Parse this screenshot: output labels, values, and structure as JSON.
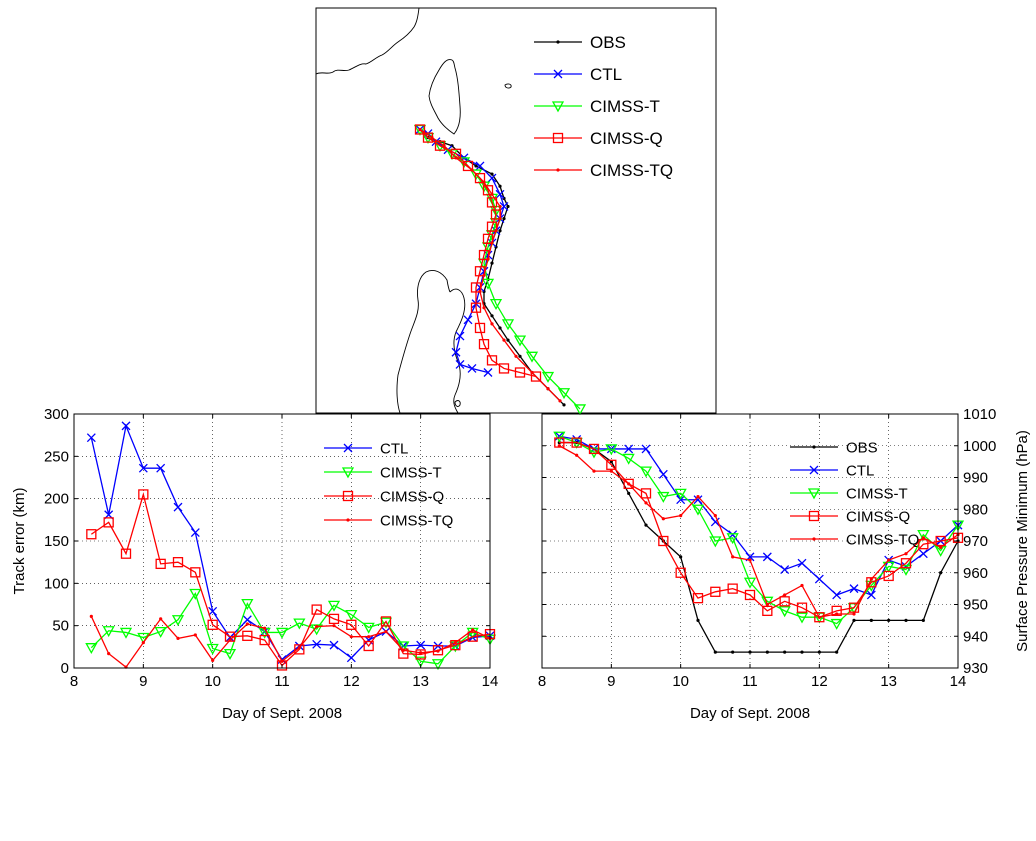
{
  "chart_data": [
    {
      "type": "line",
      "panel": "track-map",
      "legend_position": "top-right",
      "series": [
        {
          "name": "OBS",
          "color": "#000000",
          "marker": "dot",
          "points": [
            [
              0.26,
              0.3
            ],
            [
              0.28,
              0.32
            ],
            [
              0.31,
              0.33
            ],
            [
              0.34,
              0.34
            ],
            [
              0.37,
              0.37
            ],
            [
              0.4,
              0.39
            ],
            [
              0.44,
              0.41
            ],
            [
              0.46,
              0.44
            ],
            [
              0.47,
              0.47
            ],
            [
              0.48,
              0.49
            ],
            [
              0.47,
              0.52
            ],
            [
              0.46,
              0.55
            ],
            [
              0.45,
              0.59
            ],
            [
              0.44,
              0.63
            ],
            [
              0.43,
              0.67
            ],
            [
              0.42,
              0.7
            ],
            [
              0.42,
              0.73
            ],
            [
              0.44,
              0.76
            ],
            [
              0.46,
              0.79
            ],
            [
              0.48,
              0.82
            ],
            [
              0.51,
              0.86
            ],
            [
              0.54,
              0.9
            ],
            [
              0.58,
              0.94
            ],
            [
              0.62,
              0.98
            ]
          ]
        },
        {
          "name": "CTL",
          "color": "#0000ff",
          "marker": "x",
          "points": [
            [
              0.26,
              0.3
            ],
            [
              0.28,
              0.31
            ],
            [
              0.3,
              0.33
            ],
            [
              0.33,
              0.35
            ],
            [
              0.37,
              0.37
            ],
            [
              0.41,
              0.39
            ],
            [
              0.44,
              0.42
            ],
            [
              0.46,
              0.46
            ],
            [
              0.47,
              0.49
            ],
            [
              0.46,
              0.52
            ],
            [
              0.45,
              0.55
            ],
            [
              0.44,
              0.58
            ],
            [
              0.43,
              0.61
            ],
            [
              0.42,
              0.65
            ],
            [
              0.41,
              0.69
            ],
            [
              0.4,
              0.73
            ],
            [
              0.38,
              0.77
            ],
            [
              0.36,
              0.81
            ],
            [
              0.35,
              0.85
            ],
            [
              0.36,
              0.88
            ],
            [
              0.39,
              0.89
            ],
            [
              0.43,
              0.9
            ]
          ]
        },
        {
          "name": "CIMSS-T",
          "color": "#00ff00",
          "marker": "triangle-down",
          "points": [
            [
              0.26,
              0.3
            ],
            [
              0.28,
              0.32
            ],
            [
              0.31,
              0.34
            ],
            [
              0.34,
              0.36
            ],
            [
              0.37,
              0.38
            ],
            [
              0.4,
              0.41
            ],
            [
              0.42,
              0.44
            ],
            [
              0.44,
              0.47
            ],
            [
              0.45,
              0.5
            ],
            [
              0.45,
              0.53
            ],
            [
              0.44,
              0.56
            ],
            [
              0.43,
              0.59
            ],
            [
              0.42,
              0.63
            ],
            [
              0.43,
              0.68
            ],
            [
              0.45,
              0.73
            ],
            [
              0.48,
              0.78
            ],
            [
              0.51,
              0.82
            ],
            [
              0.54,
              0.86
            ],
            [
              0.58,
              0.91
            ],
            [
              0.62,
              0.95
            ],
            [
              0.66,
              0.99
            ]
          ]
        },
        {
          "name": "CIMSS-Q",
          "color": "#ff0000",
          "marker": "square",
          "points": [
            [
              0.26,
              0.3
            ],
            [
              0.28,
              0.32
            ],
            [
              0.31,
              0.34
            ],
            [
              0.35,
              0.36
            ],
            [
              0.38,
              0.39
            ],
            [
              0.41,
              0.42
            ],
            [
              0.43,
              0.45
            ],
            [
              0.44,
              0.48
            ],
            [
              0.45,
              0.51
            ],
            [
              0.44,
              0.54
            ],
            [
              0.43,
              0.57
            ],
            [
              0.42,
              0.61
            ],
            [
              0.41,
              0.65
            ],
            [
              0.4,
              0.69
            ],
            [
              0.4,
              0.74
            ],
            [
              0.41,
              0.79
            ],
            [
              0.42,
              0.83
            ],
            [
              0.44,
              0.87
            ],
            [
              0.47,
              0.89
            ],
            [
              0.51,
              0.9
            ],
            [
              0.55,
              0.91
            ]
          ]
        },
        {
          "name": "CIMSS-TQ",
          "color": "#ff0000",
          "marker": "dot",
          "points": [
            [
              0.26,
              0.3
            ],
            [
              0.29,
              0.32
            ],
            [
              0.32,
              0.34
            ],
            [
              0.35,
              0.37
            ],
            [
              0.39,
              0.4
            ],
            [
              0.42,
              0.43
            ],
            [
              0.44,
              0.46
            ],
            [
              0.46,
              0.49
            ],
            [
              0.46,
              0.52
            ],
            [
              0.45,
              0.55
            ],
            [
              0.44,
              0.58
            ],
            [
              0.43,
              0.62
            ],
            [
              0.42,
              0.66
            ],
            [
              0.41,
              0.7
            ],
            [
              0.42,
              0.74
            ],
            [
              0.44,
              0.78
            ],
            [
              0.47,
              0.82
            ],
            [
              0.5,
              0.86
            ],
            [
              0.54,
              0.9
            ],
            [
              0.58,
              0.94
            ],
            [
              0.61,
              0.97
            ]
          ]
        }
      ]
    },
    {
      "type": "line",
      "panel": "track-error",
      "xlabel": "Day of Sept. 2008",
      "ylabel": "Track error (km)",
      "xlim": [
        8,
        14
      ],
      "ylim": [
        0,
        300
      ],
      "xticks": [
        8,
        9,
        10,
        11,
        12,
        13,
        14
      ],
      "yticks": [
        0,
        50,
        100,
        150,
        200,
        250,
        300
      ],
      "grid": true,
      "legend_position": "top-right",
      "series": [
        {
          "name": "CTL",
          "color": "#0000ff",
          "marker": "x",
          "x": [
            8.25,
            8.5,
            8.75,
            9.0,
            9.25,
            9.5,
            9.75,
            10.0,
            10.25,
            10.5,
            10.75,
            11.0,
            11.25,
            11.5,
            11.75,
            12.0,
            12.25,
            12.5,
            12.75,
            13.0,
            13.25,
            13.5,
            13.75,
            14.0
          ],
          "y": [
            272,
            181,
            286,
            236,
            236,
            190,
            160,
            67,
            36,
            57,
            43,
            10,
            26,
            28,
            27,
            12,
            33,
            43,
            26,
            27,
            26,
            26,
            36,
            38
          ]
        },
        {
          "name": "CIMSS-T",
          "color": "#00ff00",
          "marker": "triangle-down",
          "x": [
            8.25,
            8.5,
            8.75,
            9.0,
            9.25,
            9.5,
            9.75,
            10.0,
            10.25,
            10.5,
            10.75,
            11.0,
            11.25,
            11.5,
            11.75,
            12.0,
            12.25,
            12.5,
            12.75,
            13.0,
            13.25,
            13.5,
            13.75,
            14.0
          ],
          "y": [
            24,
            44,
            42,
            36,
            43,
            57,
            88,
            23,
            17,
            76,
            42,
            42,
            53,
            46,
            74,
            63,
            48,
            54,
            26,
            8,
            5,
            26,
            42,
            34
          ]
        },
        {
          "name": "CIMSS-Q",
          "color": "#ff0000",
          "marker": "square",
          "x": [
            8.25,
            8.5,
            8.75,
            9.0,
            9.25,
            9.5,
            9.75,
            10.0,
            10.25,
            10.5,
            10.75,
            11.0,
            11.25,
            11.5,
            11.75,
            12.0,
            12.25,
            12.5,
            12.75,
            13.0,
            13.25,
            13.5,
            13.75,
            14.0
          ],
          "y": [
            158,
            172,
            135,
            205,
            123,
            125,
            113,
            51,
            37,
            38,
            33,
            3,
            22,
            69,
            58,
            51,
            26,
            55,
            17,
            16,
            21,
            27,
            37,
            40
          ]
        },
        {
          "name": "CIMSS-TQ",
          "color": "#ff0000",
          "marker": "dot",
          "x": [
            8.25,
            8.5,
            8.75,
            9.0,
            9.25,
            9.5,
            9.75,
            10.0,
            10.25,
            10.5,
            10.75,
            11.0,
            11.25,
            11.5,
            11.75,
            12.0,
            12.25,
            12.5,
            12.75,
            13.0,
            13.25,
            13.5,
            13.75,
            14.0
          ],
          "y": [
            61,
            17,
            1,
            30,
            58,
            35,
            39,
            9,
            33,
            52,
            47,
            8,
            24,
            49,
            50,
            37,
            37,
            43,
            21,
            18,
            20,
            30,
            45,
            35
          ]
        }
      ]
    },
    {
      "type": "line",
      "panel": "surface-pressure",
      "xlabel": "Day of Sept. 2008",
      "ylabel": "Surface Pressure Minimum (hPa)",
      "xlim": [
        8,
        14
      ],
      "ylim": [
        930,
        1010
      ],
      "xticks": [
        8,
        9,
        10,
        11,
        12,
        13,
        14
      ],
      "yticks": [
        930,
        940,
        950,
        960,
        970,
        980,
        990,
        1000,
        1010
      ],
      "grid": true,
      "legend_position": "top-right",
      "series": [
        {
          "name": "OBS",
          "color": "#000000",
          "marker": "dot",
          "x": [
            8.25,
            8.5,
            8.75,
            9.0,
            9.25,
            9.5,
            9.75,
            10.0,
            10.25,
            10.5,
            10.75,
            11.0,
            11.25,
            11.5,
            11.75,
            12.0,
            12.25,
            12.5,
            12.75,
            13.0,
            13.25,
            13.5,
            13.75,
            14.0
          ],
          "y": [
            1001,
            1001,
            999,
            995,
            985,
            975,
            970,
            965,
            945,
            935,
            935,
            935,
            935,
            935,
            935,
            935,
            935,
            945,
            945,
            945,
            945,
            945,
            960,
            970
          ]
        },
        {
          "name": "CTL",
          "color": "#0000ff",
          "marker": "x",
          "x": [
            8.25,
            8.5,
            8.75,
            9.0,
            9.25,
            9.5,
            9.75,
            10.0,
            10.25,
            10.5,
            10.75,
            11.0,
            11.25,
            11.5,
            11.75,
            12.0,
            12.25,
            12.5,
            12.75,
            13.0,
            13.25,
            13.5,
            13.75,
            14.0
          ],
          "y": [
            1003,
            1002,
            999,
            999,
            999,
            999,
            991,
            983,
            983,
            976,
            972,
            965,
            965,
            961,
            963,
            958,
            953,
            955,
            953,
            964,
            962,
            966,
            970,
            975
          ]
        },
        {
          "name": "CIMSS-T",
          "color": "#00ff00",
          "marker": "triangle-down",
          "x": [
            8.25,
            8.5,
            8.75,
            9.0,
            9.25,
            9.5,
            9.75,
            10.0,
            10.25,
            10.5,
            10.75,
            11.0,
            11.25,
            11.5,
            11.75,
            12.0,
            12.25,
            12.5,
            12.75,
            13.0,
            13.25,
            13.5,
            13.75,
            14.0
          ],
          "y": [
            1003,
            1001,
            998,
            999,
            996,
            992,
            984,
            985,
            980,
            970,
            971,
            957,
            951,
            948,
            946,
            946,
            944,
            949,
            956,
            962,
            961,
            972,
            967,
            975
          ]
        },
        {
          "name": "CIMSS-Q",
          "color": "#ff0000",
          "marker": "square",
          "x": [
            8.25,
            8.5,
            8.75,
            9.0,
            9.25,
            9.5,
            9.75,
            10.0,
            10.25,
            10.5,
            10.75,
            11.0,
            11.25,
            11.5,
            11.75,
            12.0,
            12.25,
            12.5,
            12.75,
            13.0,
            13.25,
            13.5,
            13.75,
            14.0
          ],
          "y": [
            1001,
            1001,
            999,
            994,
            988,
            985,
            970,
            960,
            952,
            954,
            955,
            953,
            948,
            951,
            949,
            946,
            948,
            949,
            957,
            959,
            963,
            969,
            970,
            971
          ]
        },
        {
          "name": "CIMSS-TQ",
          "color": "#ff0000",
          "marker": "dot",
          "x": [
            8.25,
            8.5,
            8.75,
            9.0,
            9.25,
            9.5,
            9.75,
            10.0,
            10.25,
            10.5,
            10.75,
            11.0,
            11.25,
            11.5,
            11.75,
            12.0,
            12.25,
            12.5,
            12.75,
            13.0,
            13.25,
            13.5,
            13.75,
            14.0
          ],
          "y": [
            1000,
            997,
            992,
            992,
            988,
            982,
            977,
            978,
            984,
            978,
            965,
            964,
            950,
            953,
            956,
            946,
            947,
            947,
            958,
            964,
            966,
            971,
            968,
            972
          ]
        }
      ]
    }
  ]
}
